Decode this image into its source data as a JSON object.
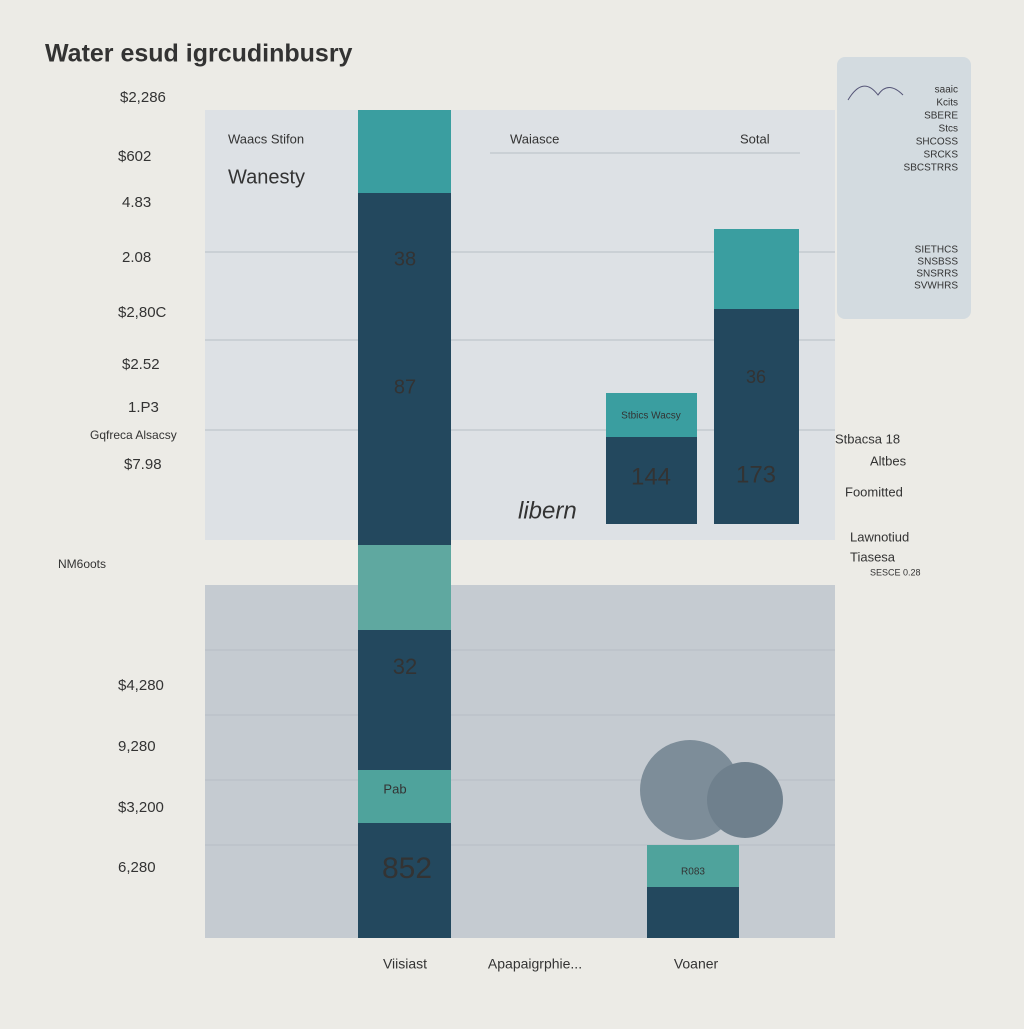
{
  "header": {
    "title": "Water esud igrcudinbusry"
  },
  "left_labels": [
    "$2,286",
    "$602",
    "4.83",
    "2.08",
    "$2,80C",
    "$2.52",
    "1.P3",
    "Gqfreca Alsacsy",
    "$7.98",
    "NM6oots",
    "$4,280",
    "9,280",
    "$3,200",
    "6,280"
  ],
  "panel": {
    "headers": [
      "Waacs Stifon",
      "Waiasce",
      "Sotal"
    ],
    "subtitle": "Wanesty",
    "note": "libern"
  },
  "bars": {
    "tall": [
      "38",
      "87",
      "32",
      "Pab",
      "852"
    ],
    "middle": [
      "Stbics Wacsy",
      "144"
    ],
    "right": [
      "36",
      "173"
    ],
    "lower": [
      "R083"
    ]
  },
  "right_labels": [
    "Stbacsa 18",
    "Altbes",
    "Foomitted",
    "Lawnotiud",
    "Tiasesa",
    "SESCE 0.28"
  ],
  "card": {
    "lines": [
      "saaic",
      "Kcits",
      "SBERE",
      "Stcs",
      "SHCOSS",
      "SRCKS",
      "SBCSTRRS",
      "SIETHCS",
      "SNSBSS",
      "SNSRRS",
      "SVWHRS"
    ]
  },
  "bottom_labels": [
    "Viisiast",
    "Apapaigrphie...",
    "Voaner"
  ]
}
